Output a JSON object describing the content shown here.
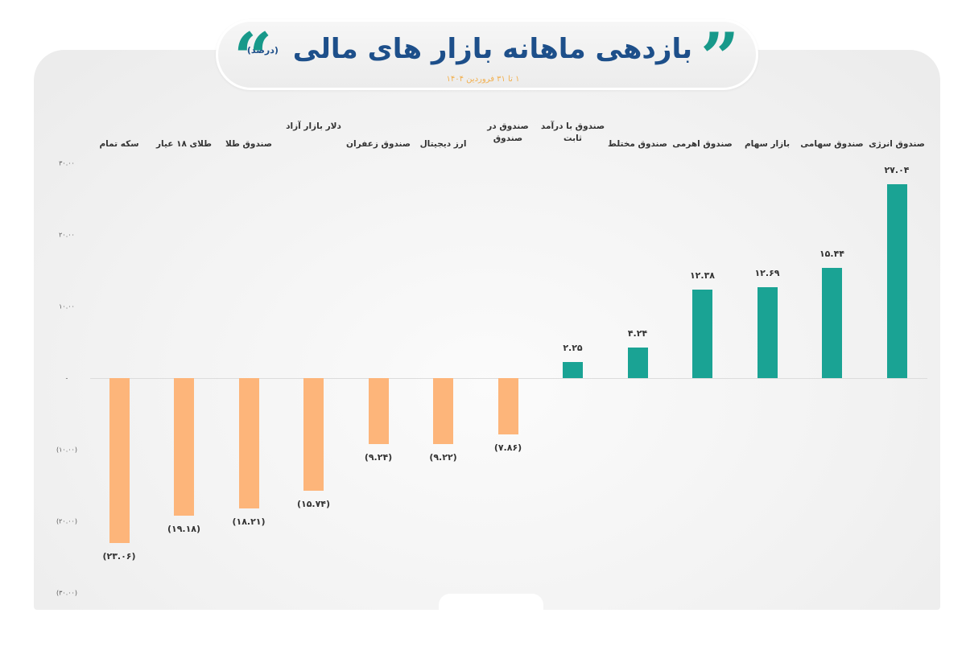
{
  "header": {
    "title": "بازدهی ماهانه بازار های مالی",
    "unit": "(درصد)",
    "subtitle": "۱ تا ۳۱ فروردین ۱۴۰۴",
    "quote_open": "“",
    "quote_close": "”"
  },
  "colors": {
    "positive": "#1aa394",
    "negative": "#fdb57a",
    "title": "#1d4f8a",
    "subtitle": "#f2b04f",
    "quotes": "#17998a"
  },
  "axis": {
    "y_ticks": [
      {
        "value": 30,
        "label": "۳۰.۰۰"
      },
      {
        "value": 20,
        "label": "۲۰.۰۰"
      },
      {
        "value": 10,
        "label": "۱۰.۰۰"
      },
      {
        "value": 0,
        "label": "-"
      },
      {
        "value": -10,
        "label": "(۱۰.۰۰)"
      },
      {
        "value": -20,
        "label": "(۲۰.۰۰)"
      },
      {
        "value": -30,
        "label": "(۳۰.۰۰)"
      }
    ]
  },
  "bars": [
    {
      "category": "سکه تمام",
      "value": -23.06,
      "label": "(۲۳.۰۶)"
    },
    {
      "category": "طلای ۱۸ عیار",
      "value": -19.18,
      "label": "(۱۹.۱۸)"
    },
    {
      "category": "صندوق طلا",
      "value": -18.21,
      "label": "(۱۸.۲۱)"
    },
    {
      "category": "دلار بازار آزاد",
      "value": -15.74,
      "label": "(۱۵.۷۴)"
    },
    {
      "category": "صندوق زعفران",
      "value": -9.24,
      "label": "(۹.۲۴)"
    },
    {
      "category": "ارز دیجیتال",
      "value": -9.22,
      "label": "(۹.۲۲)"
    },
    {
      "category": "صندوق در صندوق",
      "value": -7.86,
      "label": "(۷.۸۶)"
    },
    {
      "category": "صندوق با درآمد ثابت",
      "value": 2.25,
      "label": "۲.۲۵"
    },
    {
      "category": "صندوق مختلط",
      "value": 4.24,
      "label": "۴.۲۴"
    },
    {
      "category": "صندوق اهرمی",
      "value": 12.38,
      "label": "۱۲.۳۸"
    },
    {
      "category": "بازار سهام",
      "value": 12.69,
      "label": "۱۲.۶۹"
    },
    {
      "category": "صندوق سهامی",
      "value": 15.44,
      "label": "۱۵.۴۴"
    },
    {
      "category": "صندوق انرژی",
      "value": 27.04,
      "label": "۲۷.۰۴"
    }
  ],
  "chart_data": {
    "type": "bar",
    "title": "بازدهی ماهانه بازار های مالی (درصد)",
    "subtitle": "۱ تا ۳۱ فروردین ۱۴۰۴",
    "xlabel": "",
    "ylabel": "درصد",
    "ylim": [
      -30,
      30
    ],
    "grid": false,
    "legend": null,
    "categories": [
      "سکه تمام",
      "طلای ۱۸ عیار",
      "صندوق طلا",
      "دلار بازار آزاد",
      "صندوق زعفران",
      "ارز دیجیتال",
      "صندوق در صندوق",
      "صندوق با درآمد ثابت",
      "صندوق مختلط",
      "صندوق اهرمی",
      "بازار سهام",
      "صندوق سهامی",
      "صندوق انرژی"
    ],
    "values": [
      -23.06,
      -19.18,
      -18.21,
      -15.74,
      -9.24,
      -9.22,
      -7.86,
      2.25,
      4.24,
      12.38,
      12.69,
      15.44,
      27.04
    ],
    "y_tick_labels": [
      "۳۰.۰۰",
      "۲۰.۰۰",
      "۱۰.۰۰",
      "-",
      "(۱۰.۰۰)",
      "(۲۰.۰۰)",
      "(۳۰.۰۰)"
    ],
    "annotations": "Negative values shown in parentheses; positive bars teal, negative bars orange"
  }
}
